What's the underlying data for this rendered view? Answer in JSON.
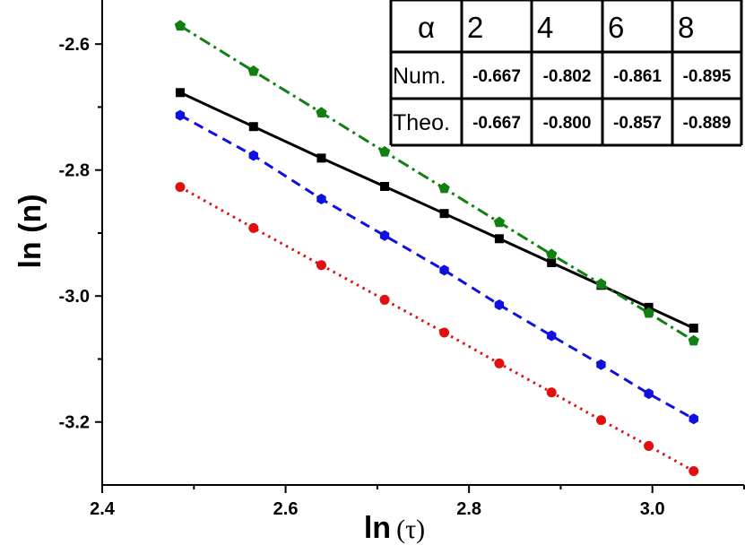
{
  "chart_data": {
    "type": "line",
    "title": "",
    "xlabel": {
      "main": "ln",
      "symbol": "(τ)"
    },
    "ylabel": "ln (n)",
    "xlim": [
      2.4,
      3.1
    ],
    "ylim": [
      -3.3,
      -2.53
    ],
    "x_ticks": [
      2.4,
      2.6,
      2.8,
      3.0
    ],
    "x_tick_labels": [
      "2.4",
      "2.6",
      "2.8",
      "3.0"
    ],
    "y_ticks": [
      -2.6,
      -2.8,
      -3.0,
      -3.2
    ],
    "y_tick_labels": [
      "-2.6",
      "-2.8",
      "-3.0",
      "-3.2"
    ],
    "x": [
      2.485,
      2.565,
      2.639,
      2.708,
      2.773,
      2.833,
      2.89,
      2.944,
      2.996,
      3.045
    ],
    "grid": false,
    "series": [
      {
        "color": "#000000",
        "line_style": "solid",
        "marker": "square",
        "values": [
          -2.677,
          -2.731,
          -2.781,
          -2.826,
          -2.869,
          -2.909,
          -2.947,
          -2.983,
          -3.018,
          -3.051
        ]
      },
      {
        "color": "#1010e0",
        "line_style": "dashed",
        "marker": "hexagon",
        "values": [
          -2.713,
          -2.777,
          -2.846,
          -2.904,
          -2.959,
          -3.014,
          -3.063,
          -3.109,
          -3.155,
          -3.195
        ]
      },
      {
        "color": "#e01010",
        "line_style": "dotted",
        "marker": "circle",
        "values": [
          -2.827,
          -2.892,
          -2.951,
          -3.006,
          -3.058,
          -3.107,
          -3.153,
          -3.197,
          -3.238,
          -3.278
        ]
      },
      {
        "color": "#108010",
        "line_style": "dashdot",
        "marker": "pentagon",
        "values": [
          -2.571,
          -2.643,
          -2.709,
          -2.771,
          -2.829,
          -2.883,
          -2.934,
          -2.981,
          -3.027,
          -3.071
        ]
      }
    ],
    "inset_table": {
      "header_label": "α",
      "columns": [
        "2",
        "4",
        "6",
        "8"
      ],
      "rows": [
        {
          "label": "Num.",
          "values": [
            "-0.667",
            "-0.802",
            "-0.861",
            "-0.895"
          ]
        },
        {
          "label": "Theo.",
          "values": [
            "-0.667",
            "-0.800",
            "-0.857",
            "-0.889"
          ]
        }
      ]
    }
  }
}
